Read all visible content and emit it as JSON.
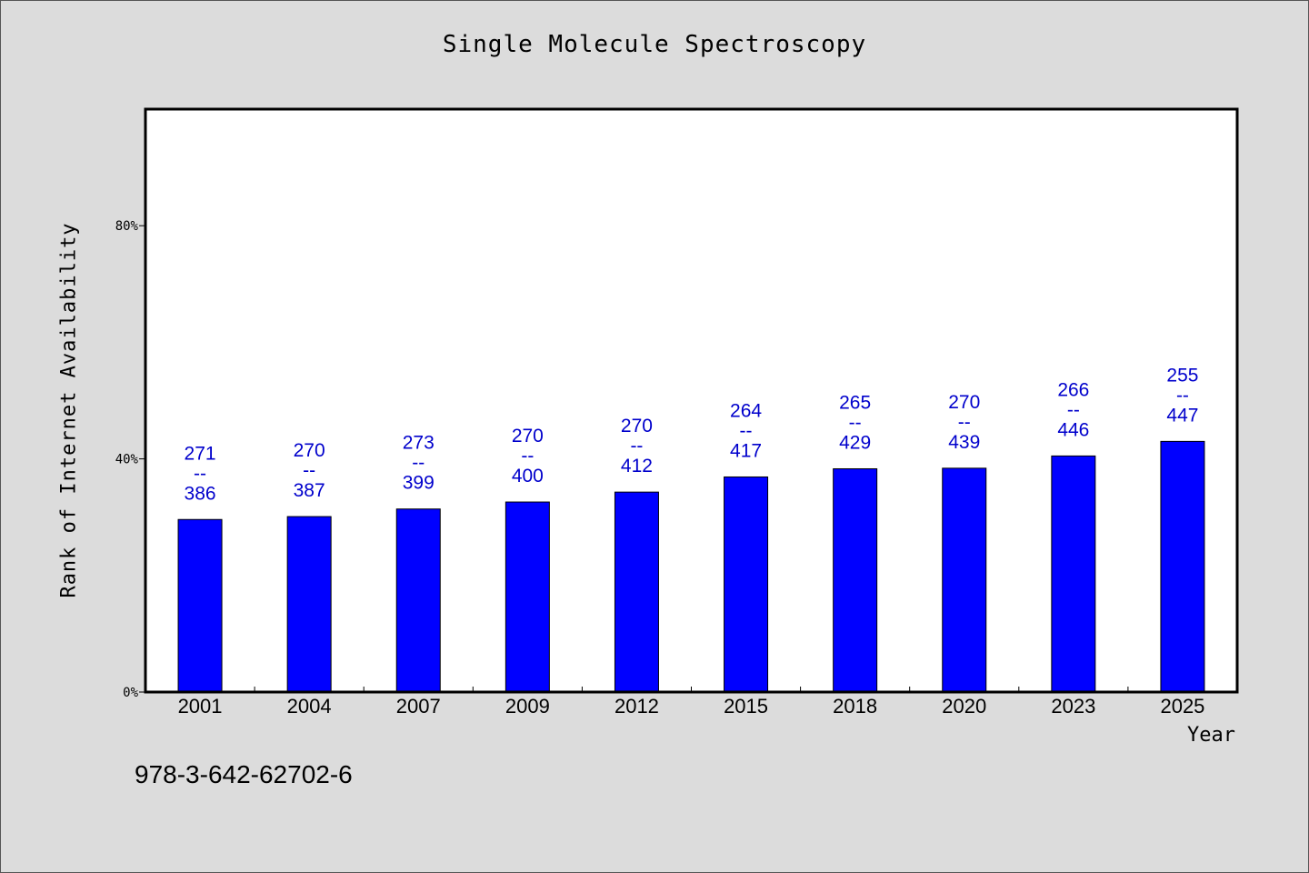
{
  "chart_data": {
    "type": "bar",
    "title": "Single Molecule Spectroscopy",
    "xlabel": "Year",
    "ylabel": "Rank of Internet Availability",
    "ylim": [
      0,
      100
    ],
    "yticks": [
      {
        "value": 0,
        "label": "0%"
      },
      {
        "value": 40,
        "label": "40%"
      },
      {
        "value": 80,
        "label": "80%"
      }
    ],
    "categories": [
      "2001",
      "2004",
      "2007",
      "2009",
      "2012",
      "2015",
      "2018",
      "2020",
      "2023",
      "2025"
    ],
    "values": [
      29.6,
      30.1,
      31.4,
      32.6,
      34.3,
      36.9,
      38.3,
      38.4,
      40.5,
      43.0
    ],
    "data_labels": [
      {
        "top": "271",
        "sep": "--",
        "bottom": "386"
      },
      {
        "top": "270",
        "sep": "--",
        "bottom": "387"
      },
      {
        "top": "273",
        "sep": "--",
        "bottom": "399"
      },
      {
        "top": "270",
        "sep": "--",
        "bottom": "400"
      },
      {
        "top": "270",
        "sep": "--",
        "bottom": "412"
      },
      {
        "top": "264",
        "sep": "--",
        "bottom": "417"
      },
      {
        "top": "265",
        "sep": "--",
        "bottom": "429"
      },
      {
        "top": "270",
        "sep": "--",
        "bottom": "439"
      },
      {
        "top": "266",
        "sep": "--",
        "bottom": "446"
      },
      {
        "top": "255",
        "sep": "--",
        "bottom": "447"
      }
    ],
    "bar_color": "#0000ff",
    "label_color": "#0000cc",
    "grid": false
  },
  "footnote": "978-3-642-62702-6"
}
